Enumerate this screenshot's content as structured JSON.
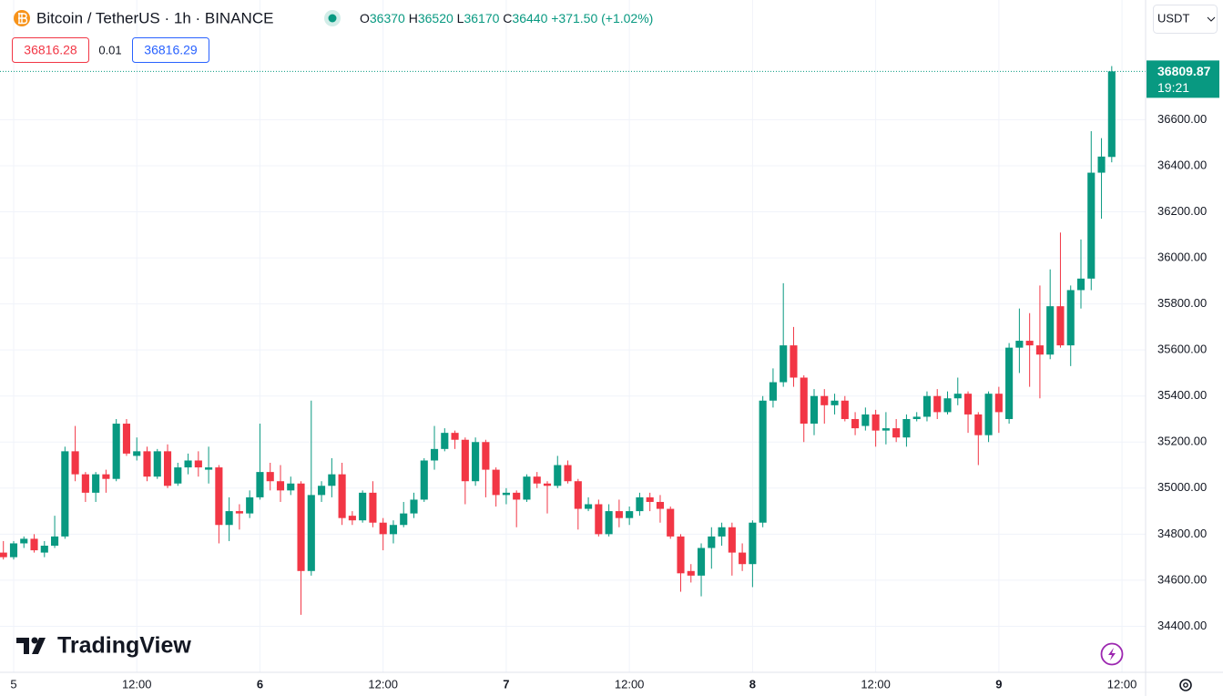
{
  "header": {
    "symbol": "Bitcoin / TetherUS · 1h · BINANCE",
    "ohlc_labels": [
      "O",
      "H",
      "L",
      "C"
    ],
    "change": "+371.50 (+1.02%)",
    "bid": 36816.28,
    "spread": 0.01,
    "ask": 36816.29,
    "currency": "USDT",
    "countdown": "19:21",
    "brand": "TradingView"
  },
  "chart_data": {
    "type": "candlestick",
    "x": [
      -1,
      0,
      1,
      2,
      3,
      4,
      5,
      6,
      7,
      8,
      9,
      10,
      11,
      12,
      13,
      14,
      15,
      16,
      17,
      18,
      19,
      20,
      21,
      22,
      23,
      24,
      25,
      26,
      27,
      28,
      29,
      30,
      31,
      32,
      33,
      34,
      35,
      36,
      37,
      38,
      39,
      40,
      41,
      42,
      43,
      44,
      45,
      46,
      47,
      48,
      49,
      50,
      51,
      52,
      53,
      54,
      55,
      56,
      57,
      58,
      59,
      60,
      61,
      62,
      63,
      64,
      65,
      66,
      67,
      68,
      69,
      70,
      71,
      72,
      73,
      74,
      75,
      76,
      77,
      78,
      79,
      80,
      81,
      82,
      83,
      84,
      85,
      86,
      87,
      88,
      89,
      90,
      91,
      92,
      93,
      94,
      95,
      96,
      97,
      98,
      99,
      100,
      101,
      102,
      103,
      104,
      105,
      106,
      107
    ],
    "open": [
      34720,
      34700,
      34760,
      34780,
      34720,
      34750,
      34790,
      35160,
      35060,
      34980,
      35060,
      35040,
      35280,
      35140,
      35160,
      35050,
      35160,
      35020,
      35090,
      35120,
      35080,
      35090,
      34840,
      34900,
      34890,
      34960,
      35070,
      35030,
      34990,
      35020,
      34640,
      34970,
      35010,
      35060,
      34880,
      34860,
      34980,
      34850,
      34800,
      34840,
      34890,
      34950,
      35120,
      35170,
      35240,
      35210,
      35030,
      35200,
      35080,
      34970,
      34980,
      34950,
      35050,
      35020,
      35010,
      35100,
      35030,
      34910,
      34930,
      34800,
      34900,
      34870,
      34900,
      34960,
      34940,
      34910,
      34790,
      34640,
      34620,
      34740,
      34790,
      34830,
      34720,
      34670,
      34850,
      35380,
      35460,
      35620,
      35480,
      35280,
      35400,
      35360,
      35380,
      35300,
      35270,
      35320,
      35250,
      35260,
      35220,
      35300,
      35310,
      35400,
      35330,
      35390,
      35410,
      35320,
      35230,
      35410,
      35300,
      35610,
      35640,
      35620,
      35580,
      35790,
      35620,
      35860,
      35910,
      36370,
      36438.38
    ],
    "high": [
      34770,
      34770,
      34790,
      34800,
      34770,
      34880,
      35180,
      35270,
      35070,
      35070,
      35080,
      35300,
      35300,
      35220,
      35180,
      35170,
      35190,
      35110,
      35150,
      35160,
      35180,
      35100,
      34960,
      34930,
      34990,
      35280,
      35110,
      35100,
      35050,
      35030,
      35380,
      35030,
      35130,
      35110,
      34900,
      34990,
      35030,
      34870,
      34860,
      34940,
      34980,
      35130,
      35270,
      35260,
      35250,
      35220,
      35220,
      35210,
      35090,
      35000,
      34990,
      35060,
      35070,
      35030,
      35140,
      35120,
      35040,
      34960,
      34950,
      34930,
      34950,
      34920,
      34980,
      34980,
      34970,
      34920,
      34800,
      34670,
      34760,
      34830,
      34850,
      34850,
      34760,
      34860,
      35400,
      35520,
      35890,
      35700,
      35490,
      35430,
      35430,
      35410,
      35400,
      35330,
      35350,
      35340,
      35330,
      35300,
      35320,
      35330,
      35420,
      35430,
      35420,
      35480,
      35420,
      35330,
      35420,
      35440,
      35630,
      35780,
      35760,
      35880,
      35950,
      36110,
      35880,
      36080,
      36550,
      36520,
      36832.98
    ],
    "low": [
      34690,
      34690,
      34740,
      34720,
      34700,
      34740,
      34780,
      35030,
      34940,
      34940,
      34980,
      35030,
      35140,
      35120,
      35030,
      35040,
      35000,
      35010,
      35060,
      35050,
      35020,
      34760,
      34770,
      34820,
      34870,
      34950,
      34990,
      34940,
      34970,
      34450,
      34620,
      34940,
      34960,
      34840,
      34840,
      34850,
      34830,
      34730,
      34760,
      34830,
      34870,
      34940,
      35080,
      35160,
      35170,
      34930,
      35010,
      34960,
      34920,
      34930,
      34830,
      34940,
      35000,
      34890,
      35000,
      35020,
      34820,
      34900,
      34790,
      34790,
      34830,
      34840,
      34880,
      34900,
      34850,
      34780,
      34550,
      34590,
      34530,
      34650,
      34750,
      34620,
      34640,
      34570,
      34830,
      35350,
      35440,
      35440,
      35200,
      35230,
      35280,
      35320,
      35290,
      35230,
      35250,
      35180,
      35190,
      35200,
      35180,
      35290,
      35290,
      35300,
      35320,
      35360,
      35240,
      35100,
      35200,
      35240,
      35280,
      35500,
      35440,
      35390,
      35560,
      35610,
      35530,
      35780,
      35860,
      36170,
      36415.01
    ],
    "close": [
      34700,
      34760,
      34780,
      34730,
      34750,
      34790,
      35160,
      35060,
      34980,
      35060,
      35040,
      35280,
      35150,
      35160,
      35050,
      35160,
      35010,
      35090,
      35120,
      35090,
      35090,
      34840,
      34900,
      34890,
      34960,
      35070,
      35030,
      34990,
      35020,
      34640,
      34970,
      35010,
      35060,
      34870,
      34860,
      34980,
      34850,
      34800,
      34840,
      34890,
      34950,
      35120,
      35170,
      35240,
      35210,
      35030,
      35200,
      35080,
      34970,
      34980,
      34950,
      35050,
      35020,
      35010,
      35100,
      35030,
      34910,
      34930,
      34800,
      34900,
      34870,
      34900,
      34960,
      34940,
      34910,
      34790,
      34630,
      34620,
      34740,
      34790,
      34830,
      34720,
      34670,
      34850,
      35380,
      35460,
      35620,
      35480,
      35280,
      35400,
      35360,
      35380,
      35300,
      35260,
      35320,
      35250,
      35260,
      35220,
      35300,
      35310,
      35400,
      35330,
      35390,
      35410,
      35320,
      35230,
      35410,
      35330,
      35610,
      35640,
      35620,
      35580,
      35790,
      35620,
      35860,
      35910,
      36370,
      36440,
      36809.87
    ],
    "up_color": "#089981",
    "down_color": "#f23645",
    "xlim": [
      -1.33,
      110.3
    ],
    "xticks": [
      {
        "value": 0,
        "label": "5"
      },
      {
        "value": 12,
        "label": "12:00"
      },
      {
        "value": 24,
        "label": "6"
      },
      {
        "value": 36,
        "label": "12:00"
      },
      {
        "value": 48,
        "label": "7"
      },
      {
        "value": 60,
        "label": "12:00"
      },
      {
        "value": 72,
        "label": "8"
      },
      {
        "value": 84,
        "label": "12:00"
      },
      {
        "value": 96,
        "label": "9"
      },
      {
        "value": 108,
        "label": "12:00"
      }
    ],
    "ylim": [
      34200,
      37120
    ],
    "yticks": [
      {
        "value": 34400,
        "label": "34400.00"
      },
      {
        "value": 34600,
        "label": "34600.00"
      },
      {
        "value": 34800,
        "label": "34800.00"
      },
      {
        "value": 35000,
        "label": "35000.00"
      },
      {
        "value": 35200,
        "label": "35200.00"
      },
      {
        "value": 35400,
        "label": "35400.00"
      },
      {
        "value": 35600,
        "label": "35600.00"
      },
      {
        "value": 35800,
        "label": "35800.00"
      },
      {
        "value": 36000,
        "label": "36000.00"
      },
      {
        "value": 36200,
        "label": "36200.00"
      },
      {
        "value": 36400,
        "label": "36400.00"
      },
      {
        "value": 36600,
        "label": "36600.00"
      }
    ],
    "grid": true
  }
}
